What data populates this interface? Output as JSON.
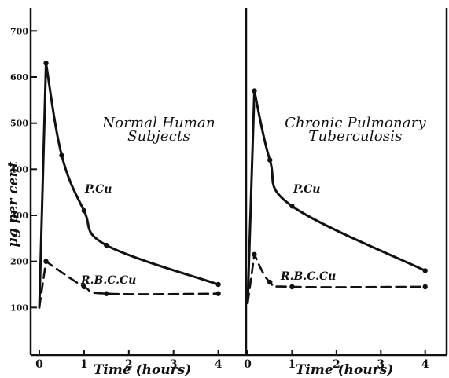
{
  "chart_data": [
    {
      "type": "line",
      "title": [
        "Normal Human",
        "Subjects"
      ],
      "xlabel": "Time (hours)",
      "ylabel": "μg per cent",
      "xlim": [
        0,
        4.2
      ],
      "ylim": [
        0,
        750
      ],
      "x_ticks": [
        0,
        1,
        2,
        3,
        4
      ],
      "y_ticks": [
        100,
        200,
        300,
        400,
        500,
        600,
        700
      ],
      "series": [
        {
          "name": "P.Cu",
          "style": "solid",
          "points": [
            {
              "x": 0.0,
              "y": 100
            },
            {
              "x": 0.15,
              "y": 630
            },
            {
              "x": 0.5,
              "y": 430
            },
            {
              "x": 1.0,
              "y": 310
            },
            {
              "x": 1.5,
              "y": 235
            },
            {
              "x": 4.0,
              "y": 150
            }
          ]
        },
        {
          "name": "R.B.C.Cu",
          "style": "dashed",
          "points": [
            {
              "x": 0.0,
              "y": 100
            },
            {
              "x": 0.15,
              "y": 200
            },
            {
              "x": 1.0,
              "y": 145
            },
            {
              "x": 1.5,
              "y": 130
            },
            {
              "x": 4.0,
              "y": 130
            }
          ]
        }
      ]
    },
    {
      "type": "line",
      "title": [
        "Chronic Pulmonary",
        "Tuberculosis"
      ],
      "xlabel": "Time (hours)",
      "ylabel": "",
      "xlim": [
        0,
        4.2
      ],
      "ylim": [
        0,
        750
      ],
      "x_ticks": [
        0,
        1,
        2,
        3,
        4
      ],
      "series": [
        {
          "name": "P.Cu",
          "style": "solid",
          "points": [
            {
              "x": 0.0,
              "y": 110
            },
            {
              "x": 0.15,
              "y": 570
            },
            {
              "x": 0.5,
              "y": 420
            },
            {
              "x": 1.0,
              "y": 320
            },
            {
              "x": 4.0,
              "y": 180
            }
          ]
        },
        {
          "name": "R.B.C.Cu",
          "style": "dashed",
          "points": [
            {
              "x": 0.0,
              "y": 110
            },
            {
              "x": 0.15,
              "y": 215
            },
            {
              "x": 0.5,
              "y": 155
            },
            {
              "x": 1.0,
              "y": 145
            },
            {
              "x": 4.0,
              "y": 145
            }
          ]
        }
      ]
    }
  ]
}
